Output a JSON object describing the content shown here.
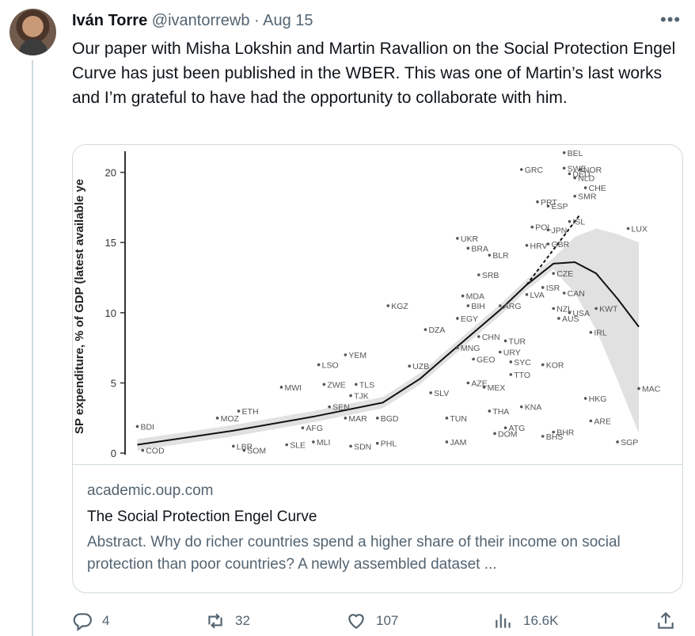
{
  "tweet": {
    "author_name": "Iván Torre",
    "handle": "@ivantorrewb",
    "separator": "·",
    "date": "Aug 15",
    "text": "Our paper with Misha Lokshin and Martin Ravallion on the Social Protection Engel Curve has just been published in the WBER. This was one of Martin’s last works and I’m grateful to have had the opportunity to collaborate with him."
  },
  "card": {
    "domain": "academic.oup.com",
    "title": "The Social Protection Engel Curve",
    "description": "Abstract. Why do richer countries spend a higher share of their income on social protection than poor countries? A newly assembled dataset ..."
  },
  "actions": {
    "replies": "4",
    "reposts": "32",
    "likes": "107",
    "views": "16.6K"
  },
  "icons": [
    "more-icon",
    "reply-icon",
    "repost-icon",
    "like-icon",
    "views-icon",
    "share-icon"
  ],
  "colors": {
    "text": "#0f1419",
    "muted": "#536471",
    "border": "#cfd9de"
  },
  "chart_data": {
    "type": "scatter",
    "ylabel": "SP expenditure, % of GDP (latest available ye",
    "ylim": [
      -0.5,
      21.5
    ],
    "yticks": [
      0,
      5,
      10,
      15,
      20
    ],
    "xlim": [
      0,
      100
    ],
    "points": [
      {
        "label": "BDI",
        "x": 2,
        "y": 1.9
      },
      {
        "label": "COD",
        "x": 3,
        "y": 0.2
      },
      {
        "label": "MOZ",
        "x": 17,
        "y": 2.5
      },
      {
        "label": "ETH",
        "x": 21,
        "y": 3.0
      },
      {
        "label": "MWI",
        "x": 29,
        "y": 4.7
      },
      {
        "label": "LBR",
        "x": 20,
        "y": 0.5
      },
      {
        "label": "SOM",
        "x": 22,
        "y": 0.2
      },
      {
        "label": "SLE",
        "x": 30,
        "y": 0.6
      },
      {
        "label": "MLI",
        "x": 35,
        "y": 0.8
      },
      {
        "label": "AFG",
        "x": 33,
        "y": 1.8
      },
      {
        "label": "SDN",
        "x": 42,
        "y": 0.5
      },
      {
        "label": "PHL",
        "x": 47,
        "y": 0.7
      },
      {
        "label": "SEN",
        "x": 38,
        "y": 3.3
      },
      {
        "label": "MAR",
        "x": 41,
        "y": 2.5
      },
      {
        "label": "BGD",
        "x": 47,
        "y": 2.5
      },
      {
        "label": "TJK",
        "x": 42,
        "y": 4.1
      },
      {
        "label": "ZWE",
        "x": 37,
        "y": 4.9
      },
      {
        "label": "TLS",
        "x": 43,
        "y": 4.9
      },
      {
        "label": "LSO",
        "x": 36,
        "y": 6.3
      },
      {
        "label": "YEM",
        "x": 41,
        "y": 7.0
      },
      {
        "label": "KGZ",
        "x": 49,
        "y": 10.5
      },
      {
        "label": "UZB",
        "x": 53,
        "y": 6.2
      },
      {
        "label": "DZA",
        "x": 56,
        "y": 8.8
      },
      {
        "label": "SLV",
        "x": 57,
        "y": 4.3
      },
      {
        "label": "JAM",
        "x": 60,
        "y": 0.8
      },
      {
        "label": "TUN",
        "x": 60,
        "y": 2.5
      },
      {
        "label": "EGY",
        "x": 62,
        "y": 9.6
      },
      {
        "label": "MNG",
        "x": 62,
        "y": 7.5
      },
      {
        "label": "GEO",
        "x": 65,
        "y": 6.7
      },
      {
        "label": "CHN",
        "x": 66,
        "y": 8.3
      },
      {
        "label": "AZE",
        "x": 64,
        "y": 5.0
      },
      {
        "label": "MEX",
        "x": 67,
        "y": 4.7
      },
      {
        "label": "THA",
        "x": 68,
        "y": 3.0
      },
      {
        "label": "DOM",
        "x": 69,
        "y": 1.4
      },
      {
        "label": "ATG",
        "x": 71,
        "y": 1.8
      },
      {
        "label": "MDA",
        "x": 63,
        "y": 11.2
      },
      {
        "label": "BIH",
        "x": 64,
        "y": 10.5
      },
      {
        "label": "UKR",
        "x": 62,
        "y": 15.3
      },
      {
        "label": "BRA",
        "x": 64,
        "y": 14.6
      },
      {
        "label": "BLR",
        "x": 68,
        "y": 14.1
      },
      {
        "label": "SRB",
        "x": 66,
        "y": 12.7
      },
      {
        "label": "ARG",
        "x": 70,
        "y": 10.5
      },
      {
        "label": "TUR",
        "x": 71,
        "y": 8.0
      },
      {
        "label": "URY",
        "x": 70,
        "y": 7.2
      },
      {
        "label": "SYC",
        "x": 72,
        "y": 6.5
      },
      {
        "label": "TTO",
        "x": 72,
        "y": 5.6
      },
      {
        "label": "KNA",
        "x": 74,
        "y": 3.3
      },
      {
        "label": "KOR",
        "x": 78,
        "y": 6.3
      },
      {
        "label": "BHS",
        "x": 78,
        "y": 1.2
      },
      {
        "label": "BHR",
        "x": 80,
        "y": 1.5
      },
      {
        "label": "LVA",
        "x": 75,
        "y": 11.3
      },
      {
        "label": "ISR",
        "x": 78,
        "y": 11.8
      },
      {
        "label": "CAN",
        "x": 82,
        "y": 11.4
      },
      {
        "label": "NZL",
        "x": 80,
        "y": 10.3
      },
      {
        "label": "AUS",
        "x": 81,
        "y": 9.6
      },
      {
        "label": "USA",
        "x": 83,
        "y": 10.0
      },
      {
        "label": "KWT",
        "x": 88,
        "y": 10.3
      },
      {
        "label": "IRL",
        "x": 87,
        "y": 8.6
      },
      {
        "label": "CZE",
        "x": 80,
        "y": 12.8
      },
      {
        "label": "HRV",
        "x": 75,
        "y": 14.8
      },
      {
        "label": "GBR",
        "x": 79,
        "y": 14.9
      },
      {
        "label": "POL",
        "x": 76,
        "y": 16.1
      },
      {
        "label": "JPN",
        "x": 79,
        "y": 15.9
      },
      {
        "label": "ISL",
        "x": 83,
        "y": 16.5
      },
      {
        "label": "PRT",
        "x": 77,
        "y": 17.9
      },
      {
        "label": "ESP",
        "x": 79,
        "y": 17.6
      },
      {
        "label": "CHE",
        "x": 86,
        "y": 18.9
      },
      {
        "label": "SMR",
        "x": 84,
        "y": 18.3
      },
      {
        "label": "GRC",
        "x": 74,
        "y": 20.2
      },
      {
        "label": "BEL",
        "x": 82,
        "y": 21.4
      },
      {
        "label": "SWE",
        "x": 82,
        "y": 20.3
      },
      {
        "label": "NOR",
        "x": 85,
        "y": 20.2
      },
      {
        "label": "DEU",
        "x": 83,
        "y": 19.9
      },
      {
        "label": "NLD",
        "x": 84,
        "y": 19.6
      },
      {
        "label": "LUX",
        "x": 94,
        "y": 16.0
      },
      {
        "label": "HKG",
        "x": 86,
        "y": 3.9
      },
      {
        "label": "ARE",
        "x": 87,
        "y": 2.3
      },
      {
        "label": "SGP",
        "x": 92,
        "y": 0.8
      },
      {
        "label": "MAC",
        "x": 96,
        "y": 4.6
      }
    ],
    "trend": [
      [
        2,
        0.6
      ],
      [
        20,
        1.6
      ],
      [
        35,
        2.6
      ],
      [
        48,
        3.6
      ],
      [
        55,
        5.3
      ],
      [
        62,
        7.6
      ],
      [
        70,
        10.2
      ],
      [
        75,
        12.0
      ],
      [
        80,
        13.5
      ],
      [
        84,
        13.6
      ],
      [
        88,
        12.8
      ],
      [
        92,
        11.0
      ],
      [
        96,
        9.0
      ]
    ],
    "trend_dashed": [
      [
        75,
        12.0
      ],
      [
        80,
        14.5
      ],
      [
        85,
        17.0
      ]
    ]
  }
}
